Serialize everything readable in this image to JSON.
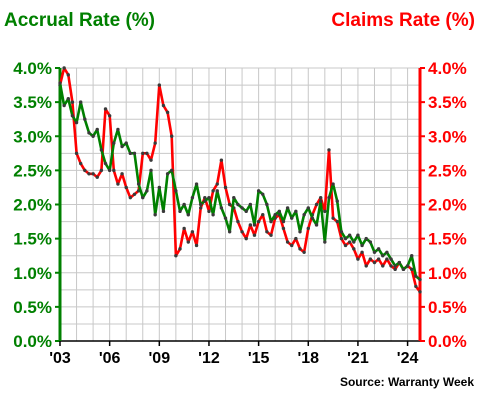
{
  "chart_data": {
    "type": "line",
    "left_axis_title": "Accrual Rate (%)",
    "right_axis_title": "Claims Rate (%)",
    "source": "Source: Warranty Week",
    "ylim": [
      0,
      4
    ],
    "y_ticks": [
      {
        "value": 0,
        "label": "0.0%"
      },
      {
        "value": 0.5,
        "label": "0.5%"
      },
      {
        "value": 1,
        "label": "1.0%"
      },
      {
        "value": 1.5,
        "label": "1.5%"
      },
      {
        "value": 2,
        "label": "2.0%"
      },
      {
        "value": 2.5,
        "label": "2.5%"
      },
      {
        "value": 3,
        "label": "3.0%"
      },
      {
        "value": 3.5,
        "label": "3.5%"
      },
      {
        "value": 4,
        "label": "4.0%"
      }
    ],
    "xlim": [
      2003.0,
      2024.75
    ],
    "x_ticks": [
      {
        "value": 2003,
        "label": "'03"
      },
      {
        "value": 2006,
        "label": "'06"
      },
      {
        "value": 2009,
        "label": "'09"
      },
      {
        "value": 2012,
        "label": "'12"
      },
      {
        "value": 2015,
        "label": "'15"
      },
      {
        "value": 2018,
        "label": "'18"
      },
      {
        "value": 2021,
        "label": "'21"
      },
      {
        "value": 2024,
        "label": "'24"
      }
    ],
    "grid": true,
    "series": [
      {
        "axis": "left",
        "color": "#008000",
        "marker_color": "#3a3a3a",
        "points": [
          [
            2003.0,
            3.78
          ],
          [
            2003.25,
            3.45
          ],
          [
            2003.5,
            3.55
          ],
          [
            2003.75,
            3.3
          ],
          [
            2004.0,
            3.2
          ],
          [
            2004.25,
            3.5
          ],
          [
            2004.5,
            3.25
          ],
          [
            2004.75,
            3.05
          ],
          [
            2005.0,
            3.0
          ],
          [
            2005.25,
            3.1
          ],
          [
            2005.5,
            2.8
          ],
          [
            2005.75,
            2.6
          ],
          [
            2006.0,
            2.5
          ],
          [
            2006.25,
            2.9
          ],
          [
            2006.5,
            3.1
          ],
          [
            2006.75,
            2.85
          ],
          [
            2007.0,
            2.9
          ],
          [
            2007.25,
            2.75
          ],
          [
            2007.5,
            2.75
          ],
          [
            2007.75,
            2.3
          ],
          [
            2008.0,
            2.1
          ],
          [
            2008.25,
            2.2
          ],
          [
            2008.5,
            2.5
          ],
          [
            2008.75,
            1.85
          ],
          [
            2009.0,
            2.25
          ],
          [
            2009.25,
            1.9
          ],
          [
            2009.5,
            2.45
          ],
          [
            2009.75,
            2.5
          ],
          [
            2010.0,
            2.2
          ],
          [
            2010.25,
            1.9
          ],
          [
            2010.5,
            2.0
          ],
          [
            2010.75,
            1.85
          ],
          [
            2011.0,
            2.1
          ],
          [
            2011.25,
            2.3
          ],
          [
            2011.5,
            2.0
          ],
          [
            2011.75,
            2.05
          ],
          [
            2012.0,
            2.1
          ],
          [
            2012.25,
            1.85
          ],
          [
            2012.5,
            2.2
          ],
          [
            2012.75,
            1.95
          ],
          [
            2013.0,
            1.8
          ],
          [
            2013.25,
            1.6
          ],
          [
            2013.5,
            2.1
          ],
          [
            2013.75,
            2.0
          ],
          [
            2014.0,
            1.95
          ],
          [
            2014.25,
            1.9
          ],
          [
            2014.5,
            2.0
          ],
          [
            2014.75,
            1.7
          ],
          [
            2015.0,
            2.2
          ],
          [
            2015.25,
            2.15
          ],
          [
            2015.5,
            2.0
          ],
          [
            2015.75,
            1.75
          ],
          [
            2016.0,
            1.85
          ],
          [
            2016.25,
            1.9
          ],
          [
            2016.5,
            1.75
          ],
          [
            2016.75,
            1.95
          ],
          [
            2017.0,
            1.8
          ],
          [
            2017.25,
            1.9
          ],
          [
            2017.5,
            1.6
          ],
          [
            2017.75,
            1.85
          ],
          [
            2018.0,
            1.95
          ],
          [
            2018.25,
            1.8
          ],
          [
            2018.5,
            1.7
          ],
          [
            2018.75,
            2.05
          ],
          [
            2019.0,
            1.45
          ],
          [
            2019.25,
            2.1
          ],
          [
            2019.5,
            2.3
          ],
          [
            2019.75,
            2.05
          ],
          [
            2020.0,
            1.6
          ],
          [
            2020.25,
            1.5
          ],
          [
            2020.5,
            1.55
          ],
          [
            2020.75,
            1.45
          ],
          [
            2021.0,
            1.55
          ],
          [
            2021.25,
            1.4
          ],
          [
            2021.5,
            1.5
          ],
          [
            2021.75,
            1.45
          ],
          [
            2022.0,
            1.3
          ],
          [
            2022.25,
            1.35
          ],
          [
            2022.5,
            1.25
          ],
          [
            2022.75,
            1.3
          ],
          [
            2023.0,
            1.2
          ],
          [
            2023.25,
            1.1
          ],
          [
            2023.5,
            1.15
          ],
          [
            2023.75,
            1.05
          ],
          [
            2024.0,
            1.1
          ],
          [
            2024.25,
            1.25
          ],
          [
            2024.5,
            0.95
          ],
          [
            2024.75,
            0.9
          ]
        ]
      },
      {
        "axis": "right",
        "color": "#ff0000",
        "marker_color": "#3a3a3a",
        "points": [
          [
            2003.0,
            3.75
          ],
          [
            2003.25,
            4.0
          ],
          [
            2003.5,
            3.9
          ],
          [
            2003.75,
            3.5
          ],
          [
            2004.0,
            2.75
          ],
          [
            2004.25,
            2.6
          ],
          [
            2004.5,
            2.5
          ],
          [
            2004.75,
            2.45
          ],
          [
            2005.0,
            2.45
          ],
          [
            2005.25,
            2.4
          ],
          [
            2005.5,
            2.5
          ],
          [
            2005.75,
            3.4
          ],
          [
            2006.0,
            3.3
          ],
          [
            2006.25,
            2.5
          ],
          [
            2006.5,
            2.3
          ],
          [
            2006.75,
            2.45
          ],
          [
            2007.0,
            2.25
          ],
          [
            2007.25,
            2.1
          ],
          [
            2007.5,
            2.15
          ],
          [
            2007.75,
            2.2
          ],
          [
            2008.0,
            2.75
          ],
          [
            2008.25,
            2.75
          ],
          [
            2008.5,
            2.65
          ],
          [
            2008.75,
            2.9
          ],
          [
            2009.0,
            3.75
          ],
          [
            2009.25,
            3.45
          ],
          [
            2009.5,
            3.35
          ],
          [
            2009.75,
            3.0
          ],
          [
            2010.0,
            1.25
          ],
          [
            2010.25,
            1.35
          ],
          [
            2010.5,
            1.65
          ],
          [
            2010.75,
            1.45
          ],
          [
            2011.0,
            1.6
          ],
          [
            2011.25,
            1.4
          ],
          [
            2011.5,
            1.95
          ],
          [
            2011.75,
            2.1
          ],
          [
            2012.0,
            1.9
          ],
          [
            2012.25,
            2.2
          ],
          [
            2012.5,
            2.3
          ],
          [
            2012.75,
            2.65
          ],
          [
            2013.0,
            2.25
          ],
          [
            2013.25,
            2.0
          ],
          [
            2013.5,
            1.95
          ],
          [
            2013.75,
            1.75
          ],
          [
            2014.0,
            1.6
          ],
          [
            2014.25,
            1.5
          ],
          [
            2014.5,
            1.7
          ],
          [
            2014.75,
            1.55
          ],
          [
            2015.0,
            1.75
          ],
          [
            2015.25,
            1.85
          ],
          [
            2015.5,
            1.6
          ],
          [
            2015.75,
            1.55
          ],
          [
            2016.0,
            1.8
          ],
          [
            2016.25,
            1.85
          ],
          [
            2016.5,
            1.65
          ],
          [
            2016.75,
            1.45
          ],
          [
            2017.0,
            1.4
          ],
          [
            2017.25,
            1.5
          ],
          [
            2017.5,
            1.35
          ],
          [
            2017.75,
            1.3
          ],
          [
            2018.0,
            1.65
          ],
          [
            2018.25,
            1.85
          ],
          [
            2018.5,
            2.0
          ],
          [
            2018.75,
            2.1
          ],
          [
            2019.0,
            1.9
          ],
          [
            2019.25,
            2.8
          ],
          [
            2019.5,
            1.8
          ],
          [
            2019.75,
            1.75
          ],
          [
            2020.0,
            1.5
          ],
          [
            2020.25,
            1.4
          ],
          [
            2020.5,
            1.45
          ],
          [
            2020.75,
            1.35
          ],
          [
            2021.0,
            1.2
          ],
          [
            2021.25,
            1.3
          ],
          [
            2021.5,
            1.1
          ],
          [
            2021.75,
            1.2
          ],
          [
            2022.0,
            1.15
          ],
          [
            2022.25,
            1.2
          ],
          [
            2022.5,
            1.1
          ],
          [
            2022.75,
            1.2
          ],
          [
            2023.0,
            1.1
          ],
          [
            2023.25,
            1.05
          ],
          [
            2023.5,
            1.15
          ],
          [
            2023.75,
            1.05
          ],
          [
            2024.0,
            1.1
          ],
          [
            2024.25,
            1.05
          ],
          [
            2024.5,
            0.8
          ],
          [
            2024.75,
            0.72
          ]
        ]
      }
    ]
  }
}
